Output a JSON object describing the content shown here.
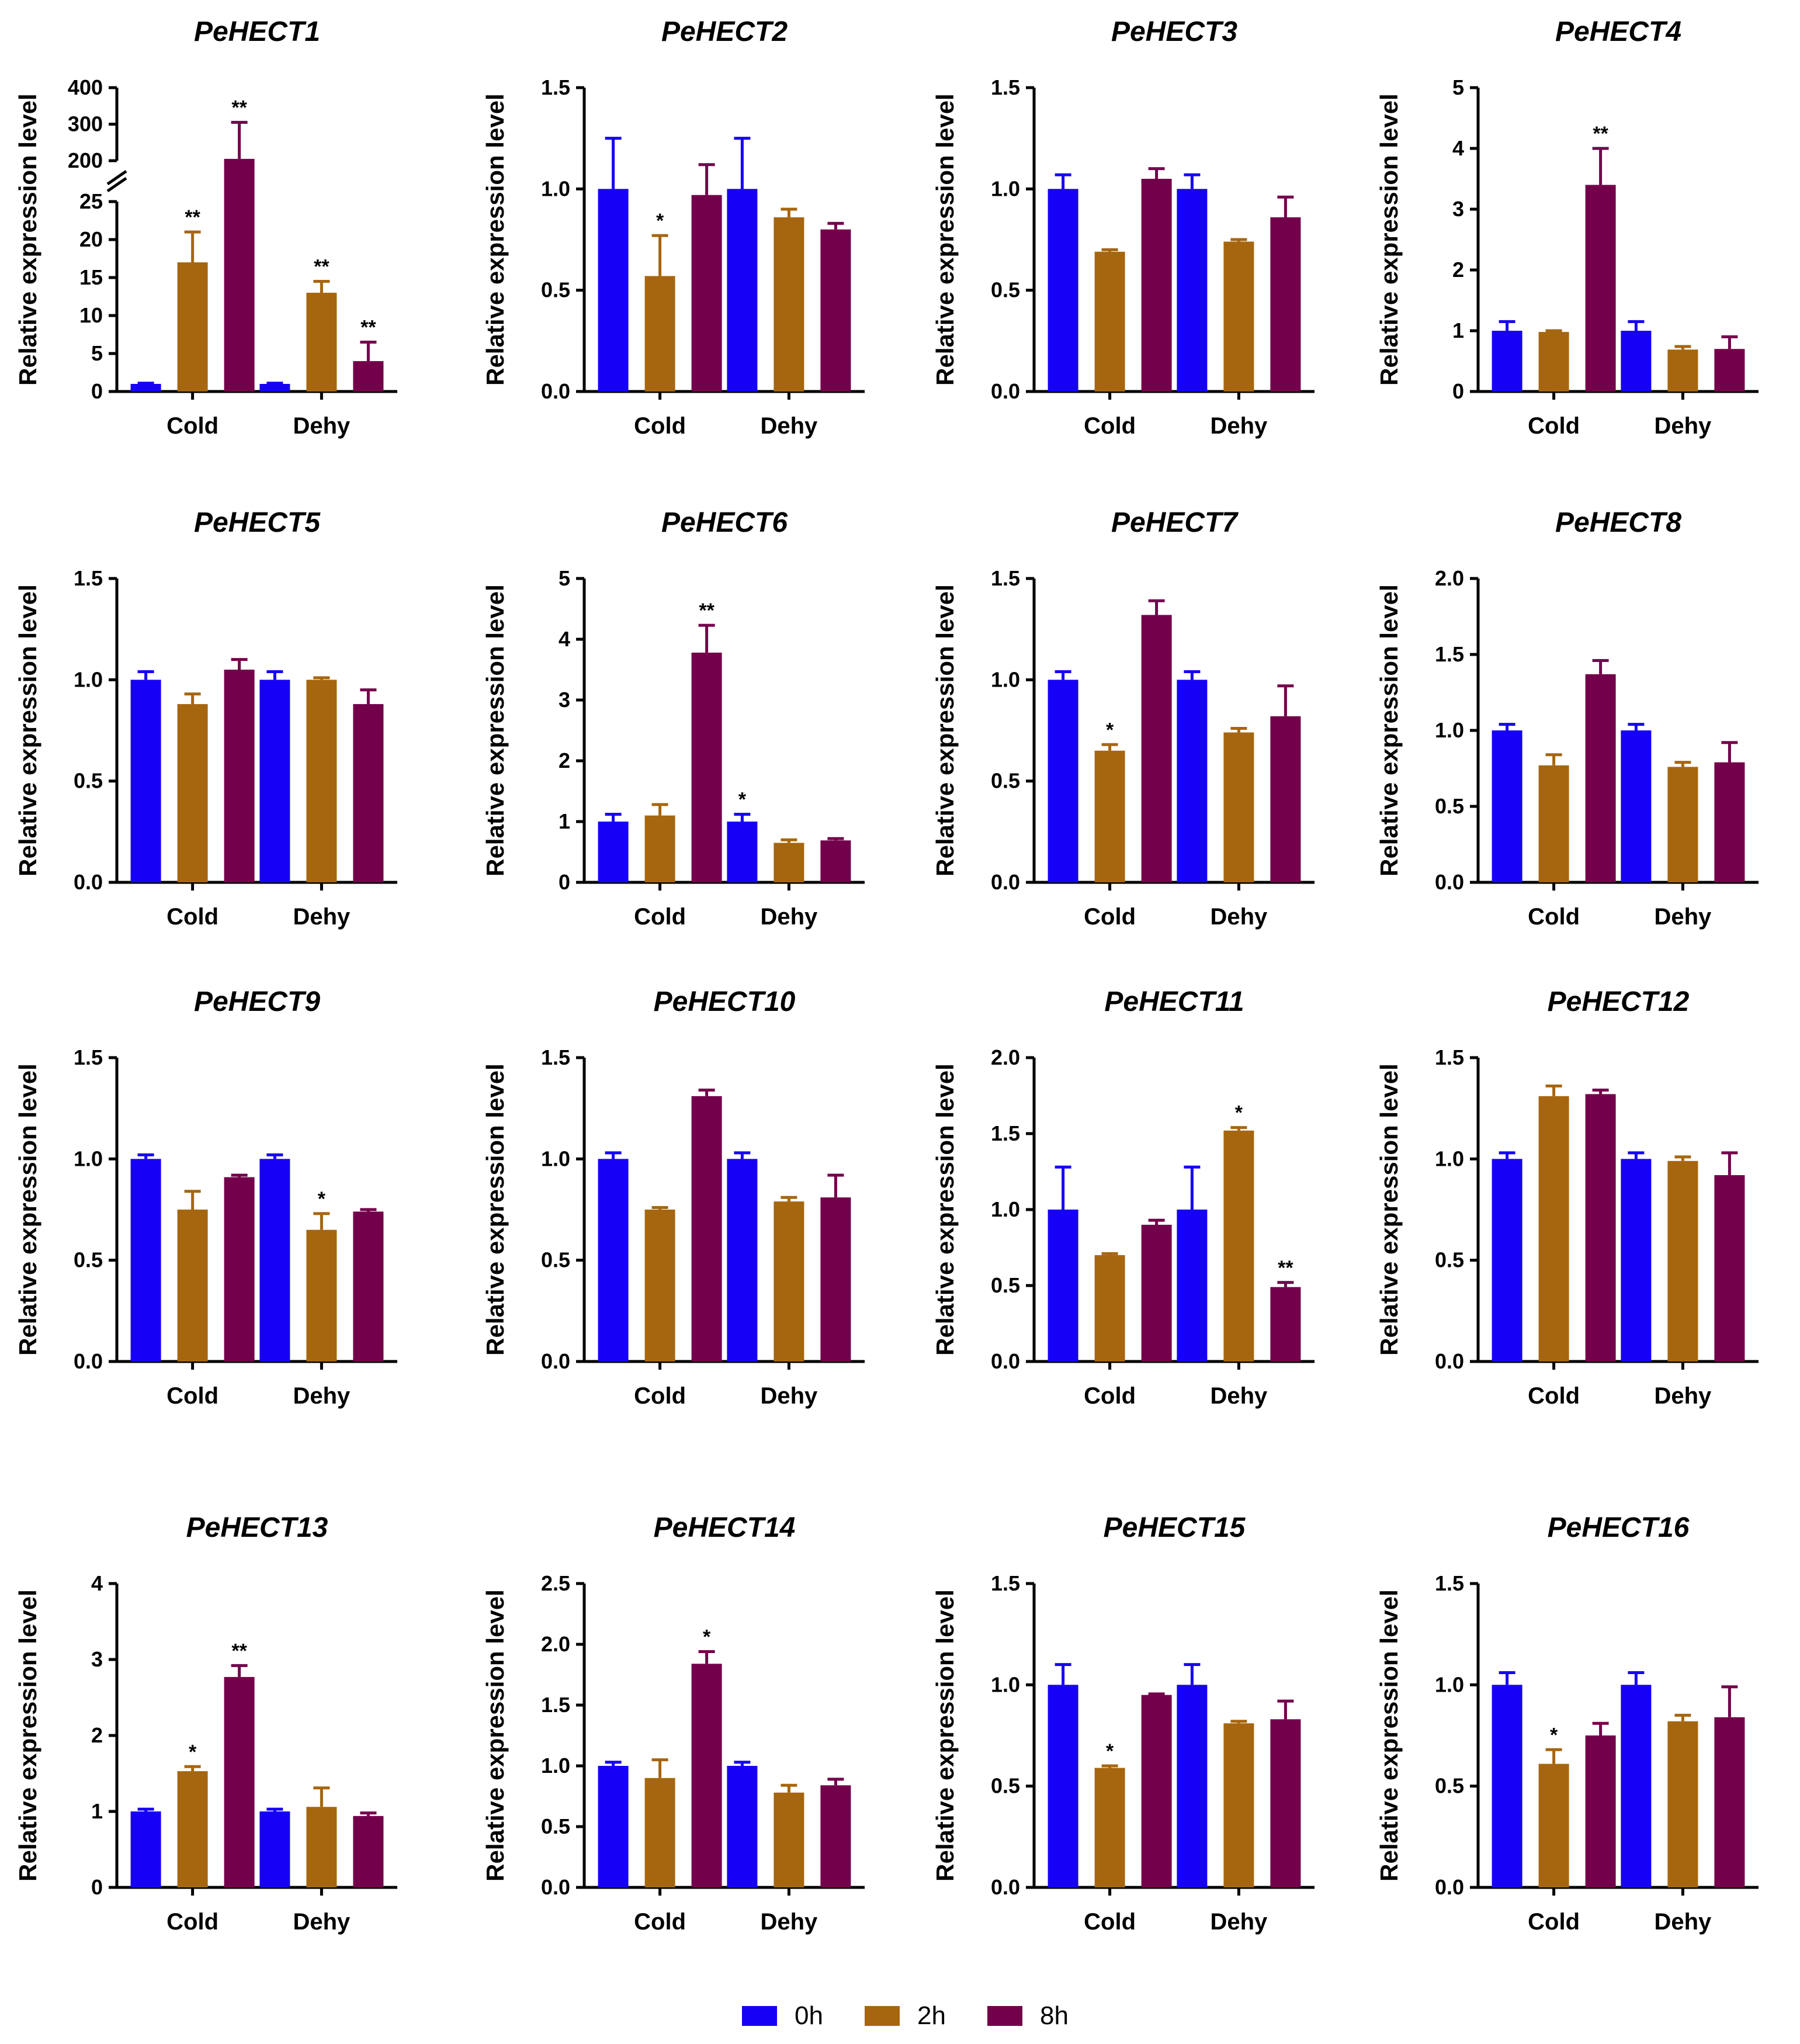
{
  "figure": {
    "categories": [
      "Cold",
      "Dehy"
    ],
    "series_names": [
      "0h",
      "2h",
      "8h"
    ],
    "colors": {
      "0h": "#1600f5",
      "2h": "#a6660f",
      "8h": "#73004a"
    },
    "ylabel": "Relative expression level"
  },
  "legend": {
    "items": [
      "0h",
      "2h",
      "8h"
    ]
  },
  "chart_data": [
    {
      "type": "bar",
      "title": "PeHECT1",
      "ylabel": "Relative expression level",
      "categories": [
        "Cold",
        "Dehy"
      ],
      "axis_break": {
        "lower": [
          0,
          25
        ],
        "upper": [
          200,
          400
        ],
        "lower_ticks": [
          0,
          5,
          10,
          15,
          20,
          25
        ],
        "upper_ticks": [
          200,
          300,
          400
        ]
      },
      "yticks": [
        "0",
        "5",
        "10",
        "15",
        "20",
        "25",
        "200",
        "300",
        "400"
      ],
      "series": [
        {
          "name": "0h",
          "values": [
            1,
            1
          ],
          "errors": [
            0.1,
            0.1
          ]
        },
        {
          "name": "2h",
          "values": [
            17,
            13
          ],
          "errors": [
            4,
            1.5
          ]
        },
        {
          "name": "8h",
          "values": [
            205,
            4
          ],
          "errors": [
            100,
            2.5
          ]
        }
      ],
      "significance": [
        [
          "",
          ""
        ],
        [
          "**",
          "**"
        ],
        [
          "**",
          "**"
        ]
      ]
    },
    {
      "type": "bar",
      "title": "PeHECT2",
      "ylabel": "Relative expression level",
      "categories": [
        "Cold",
        "Dehy"
      ],
      "ylim": [
        0,
        1.5
      ],
      "yticks": [
        "0.0",
        "0.5",
        "1.0",
        "1.5"
      ],
      "series": [
        {
          "name": "0h",
          "values": [
            1.0,
            1.0
          ],
          "errors": [
            0.25,
            0.25
          ]
        },
        {
          "name": "2h",
          "values": [
            0.57,
            0.86
          ],
          "errors": [
            0.2,
            0.04
          ]
        },
        {
          "name": "8h",
          "values": [
            0.97,
            0.8
          ],
          "errors": [
            0.15,
            0.03
          ]
        }
      ],
      "significance": [
        [
          "",
          ""
        ],
        [
          "*",
          ""
        ],
        [
          "",
          ""
        ]
      ]
    },
    {
      "type": "bar",
      "title": "PeHECT3",
      "ylabel": "Relative expression level",
      "categories": [
        "Cold",
        "Dehy"
      ],
      "ylim": [
        0,
        1.5
      ],
      "yticks": [
        "0.0",
        "0.5",
        "1.0",
        "1.5"
      ],
      "series": [
        {
          "name": "0h",
          "values": [
            1.0,
            1.0
          ],
          "errors": [
            0.07,
            0.07
          ]
        },
        {
          "name": "2h",
          "values": [
            0.69,
            0.74
          ],
          "errors": [
            0.01,
            0.01
          ]
        },
        {
          "name": "8h",
          "values": [
            1.05,
            0.86
          ],
          "errors": [
            0.05,
            0.1
          ]
        }
      ],
      "significance": [
        [
          "",
          ""
        ],
        [
          "",
          ""
        ],
        [
          "",
          ""
        ]
      ]
    },
    {
      "type": "bar",
      "title": "PeHECT4",
      "ylabel": "Relative expression level",
      "categories": [
        "Cold",
        "Dehy"
      ],
      "ylim": [
        0,
        5
      ],
      "yticks": [
        "0",
        "1",
        "2",
        "3",
        "4",
        "5"
      ],
      "series": [
        {
          "name": "0h",
          "values": [
            1.0,
            1.0
          ],
          "errors": [
            0.15,
            0.15
          ]
        },
        {
          "name": "2h",
          "values": [
            0.98,
            0.69
          ],
          "errors": [
            0.02,
            0.05
          ]
        },
        {
          "name": "8h",
          "values": [
            3.4,
            0.7
          ],
          "errors": [
            0.6,
            0.2
          ]
        }
      ],
      "significance": [
        [
          "",
          ""
        ],
        [
          "",
          ""
        ],
        [
          "**",
          ""
        ]
      ]
    },
    {
      "type": "bar",
      "title": "PeHECT5",
      "ylabel": "Relative expression level",
      "categories": [
        "Cold",
        "Dehy"
      ],
      "ylim": [
        0,
        1.5
      ],
      "yticks": [
        "0.0",
        "0.5",
        "1.0",
        "1.5"
      ],
      "series": [
        {
          "name": "0h",
          "values": [
            1.0,
            1.0
          ],
          "errors": [
            0.04,
            0.04
          ]
        },
        {
          "name": "2h",
          "values": [
            0.88,
            1.0
          ],
          "errors": [
            0.05,
            0.01
          ]
        },
        {
          "name": "8h",
          "values": [
            1.05,
            0.88
          ],
          "errors": [
            0.05,
            0.07
          ]
        }
      ],
      "significance": [
        [
          "",
          ""
        ],
        [
          "",
          ""
        ],
        [
          "",
          ""
        ]
      ]
    },
    {
      "type": "bar",
      "title": "PeHECT6",
      "ylabel": "Relative expression level",
      "categories": [
        "Cold",
        "Dehy"
      ],
      "ylim": [
        0,
        5
      ],
      "yticks": [
        "0",
        "1",
        "2",
        "3",
        "4",
        "5"
      ],
      "series": [
        {
          "name": "0h",
          "values": [
            1.0,
            1.0
          ],
          "errors": [
            0.12,
            0.12
          ]
        },
        {
          "name": "2h",
          "values": [
            1.1,
            0.65
          ],
          "errors": [
            0.18,
            0.05
          ]
        },
        {
          "name": "8h",
          "values": [
            3.78,
            0.69
          ],
          "errors": [
            0.45,
            0.03
          ]
        }
      ],
      "significance": [
        [
          "",
          "*"
        ],
        [
          "",
          ""
        ],
        [
          "**",
          ""
        ]
      ]
    },
    {
      "type": "bar",
      "title": "PeHECT7",
      "ylabel": "Relative expression level",
      "categories": [
        "Cold",
        "Dehy"
      ],
      "ylim": [
        0,
        1.5
      ],
      "yticks": [
        "0.0",
        "0.5",
        "1.0",
        "1.5"
      ],
      "series": [
        {
          "name": "0h",
          "values": [
            1.0,
            1.0
          ],
          "errors": [
            0.04,
            0.04
          ]
        },
        {
          "name": "2h",
          "values": [
            0.65,
            0.74
          ],
          "errors": [
            0.03,
            0.02
          ]
        },
        {
          "name": "8h",
          "values": [
            1.32,
            0.82
          ],
          "errors": [
            0.07,
            0.15
          ]
        }
      ],
      "significance": [
        [
          "",
          ""
        ],
        [
          "*",
          ""
        ],
        [
          "",
          ""
        ]
      ]
    },
    {
      "type": "bar",
      "title": "PeHECT8",
      "ylabel": "Relative expression level",
      "categories": [
        "Cold",
        "Dehy"
      ],
      "ylim": [
        0,
        2.0
      ],
      "yticks": [
        "0.0",
        "0.5",
        "1.0",
        "1.5",
        "2.0"
      ],
      "series": [
        {
          "name": "0h",
          "values": [
            1.0,
            1.0
          ],
          "errors": [
            0.04,
            0.04
          ]
        },
        {
          "name": "2h",
          "values": [
            0.77,
            0.76
          ],
          "errors": [
            0.07,
            0.03
          ]
        },
        {
          "name": "8h",
          "values": [
            1.37,
            0.79
          ],
          "errors": [
            0.09,
            0.13
          ]
        }
      ],
      "significance": [
        [
          "",
          ""
        ],
        [
          "",
          ""
        ],
        [
          "",
          ""
        ]
      ]
    },
    {
      "type": "bar",
      "title": "PeHECT9",
      "ylabel": "Relative expression level",
      "categories": [
        "Cold",
        "Dehy"
      ],
      "ylim": [
        0,
        1.5
      ],
      "yticks": [
        "0.0",
        "0.5",
        "1.0",
        "1.5"
      ],
      "series": [
        {
          "name": "0h",
          "values": [
            1.0,
            1.0
          ],
          "errors": [
            0.02,
            0.02
          ]
        },
        {
          "name": "2h",
          "values": [
            0.75,
            0.65
          ],
          "errors": [
            0.09,
            0.08
          ]
        },
        {
          "name": "8h",
          "values": [
            0.91,
            0.74
          ],
          "errors": [
            0.01,
            0.01
          ]
        }
      ],
      "significance": [
        [
          "",
          ""
        ],
        [
          "",
          "*"
        ],
        [
          "",
          ""
        ]
      ]
    },
    {
      "type": "bar",
      "title": "PeHECT10",
      "ylabel": "Relative expression level",
      "categories": [
        "Cold",
        "Dehy"
      ],
      "ylim": [
        0,
        1.5
      ],
      "yticks": [
        "0.0",
        "0.5",
        "1.0",
        "1.5"
      ],
      "series": [
        {
          "name": "0h",
          "values": [
            1.0,
            1.0
          ],
          "errors": [
            0.03,
            0.03
          ]
        },
        {
          "name": "2h",
          "values": [
            0.75,
            0.79
          ],
          "errors": [
            0.01,
            0.02
          ]
        },
        {
          "name": "8h",
          "values": [
            1.31,
            0.81
          ],
          "errors": [
            0.03,
            0.11
          ]
        }
      ],
      "significance": [
        [
          "",
          ""
        ],
        [
          "",
          ""
        ],
        [
          "",
          ""
        ]
      ]
    },
    {
      "type": "bar",
      "title": "PeHECT11",
      "ylabel": "Relative expression level",
      "categories": [
        "Cold",
        "Dehy"
      ],
      "ylim": [
        0,
        2.0
      ],
      "yticks": [
        "0.0",
        "0.5",
        "1.0",
        "1.5",
        "2.0"
      ],
      "series": [
        {
          "name": "0h",
          "values": [
            1.0,
            1.0
          ],
          "errors": [
            0.28,
            0.28
          ]
        },
        {
          "name": "2h",
          "values": [
            0.7,
            1.52
          ],
          "errors": [
            0.01,
            0.02
          ]
        },
        {
          "name": "8h",
          "values": [
            0.9,
            0.49
          ],
          "errors": [
            0.03,
            0.03
          ]
        }
      ],
      "significance": [
        [
          "",
          ""
        ],
        [
          "",
          "*"
        ],
        [
          "",
          "**"
        ]
      ]
    },
    {
      "type": "bar",
      "title": "PeHECT12",
      "ylabel": "Relative expression level",
      "categories": [
        "Cold",
        "Dehy"
      ],
      "ylim": [
        0,
        1.5
      ],
      "yticks": [
        "0.0",
        "0.5",
        "1.0",
        "1.5"
      ],
      "series": [
        {
          "name": "0h",
          "values": [
            1.0,
            1.0
          ],
          "errors": [
            0.03,
            0.03
          ]
        },
        {
          "name": "2h",
          "values": [
            1.31,
            0.99
          ],
          "errors": [
            0.05,
            0.02
          ]
        },
        {
          "name": "8h",
          "values": [
            1.32,
            0.92
          ],
          "errors": [
            0.02,
            0.11
          ]
        }
      ],
      "significance": [
        [
          "",
          ""
        ],
        [
          "",
          ""
        ],
        [
          "",
          ""
        ]
      ]
    },
    {
      "type": "bar",
      "title": "PeHECT13",
      "ylabel": "Relative expression level",
      "categories": [
        "Cold",
        "Dehy"
      ],
      "ylim": [
        0,
        4
      ],
      "yticks": [
        "0",
        "1",
        "2",
        "3",
        "4"
      ],
      "series": [
        {
          "name": "0h",
          "values": [
            1.0,
            1.0
          ],
          "errors": [
            0.03,
            0.03
          ]
        },
        {
          "name": "2h",
          "values": [
            1.53,
            1.06
          ],
          "errors": [
            0.06,
            0.25
          ]
        },
        {
          "name": "8h",
          "values": [
            2.77,
            0.94
          ],
          "errors": [
            0.15,
            0.04
          ]
        }
      ],
      "significance": [
        [
          "",
          ""
        ],
        [
          "*",
          ""
        ],
        [
          "**",
          ""
        ]
      ]
    },
    {
      "type": "bar",
      "title": "PeHECT14",
      "ylabel": "Relative expression level",
      "categories": [
        "Cold",
        "Dehy"
      ],
      "ylim": [
        0,
        2.5
      ],
      "yticks": [
        "0.0",
        "0.5",
        "1.0",
        "1.5",
        "2.0",
        "2.5"
      ],
      "series": [
        {
          "name": "0h",
          "values": [
            1.0,
            1.0
          ],
          "errors": [
            0.03,
            0.03
          ]
        },
        {
          "name": "2h",
          "values": [
            0.9,
            0.78
          ],
          "errors": [
            0.15,
            0.06
          ]
        },
        {
          "name": "8h",
          "values": [
            1.84,
            0.84
          ],
          "errors": [
            0.1,
            0.05
          ]
        }
      ],
      "significance": [
        [
          "",
          ""
        ],
        [
          "",
          ""
        ],
        [
          "*",
          ""
        ]
      ]
    },
    {
      "type": "bar",
      "title": "PeHECT15",
      "ylabel": "Relative expression level",
      "categories": [
        "Cold",
        "Dehy"
      ],
      "ylim": [
        0,
        1.5
      ],
      "yticks": [
        "0.0",
        "0.5",
        "1.0",
        "1.5"
      ],
      "series": [
        {
          "name": "0h",
          "values": [
            1.0,
            1.0
          ],
          "errors": [
            0.1,
            0.1
          ]
        },
        {
          "name": "2h",
          "values": [
            0.59,
            0.81
          ],
          "errors": [
            0.01,
            0.01
          ]
        },
        {
          "name": "8h",
          "values": [
            0.95,
            0.83
          ],
          "errors": [
            0.005,
            0.09
          ]
        }
      ],
      "significance": [
        [
          "",
          ""
        ],
        [
          "*",
          ""
        ],
        [
          "",
          ""
        ]
      ]
    },
    {
      "type": "bar",
      "title": "PeHECT16",
      "ylabel": "Relative expression level",
      "categories": [
        "Cold",
        "Dehy"
      ],
      "ylim": [
        0,
        1.5
      ],
      "yticks": [
        "0.0",
        "0.5",
        "1.0",
        "1.5"
      ],
      "series": [
        {
          "name": "0h",
          "values": [
            1.0,
            1.0
          ],
          "errors": [
            0.06,
            0.06
          ]
        },
        {
          "name": "2h",
          "values": [
            0.61,
            0.82
          ],
          "errors": [
            0.07,
            0.03
          ]
        },
        {
          "name": "8h",
          "values": [
            0.75,
            0.84
          ],
          "errors": [
            0.06,
            0.15
          ]
        }
      ],
      "significance": [
        [
          "",
          ""
        ],
        [
          "*",
          ""
        ],
        [
          "",
          ""
        ]
      ]
    }
  ]
}
